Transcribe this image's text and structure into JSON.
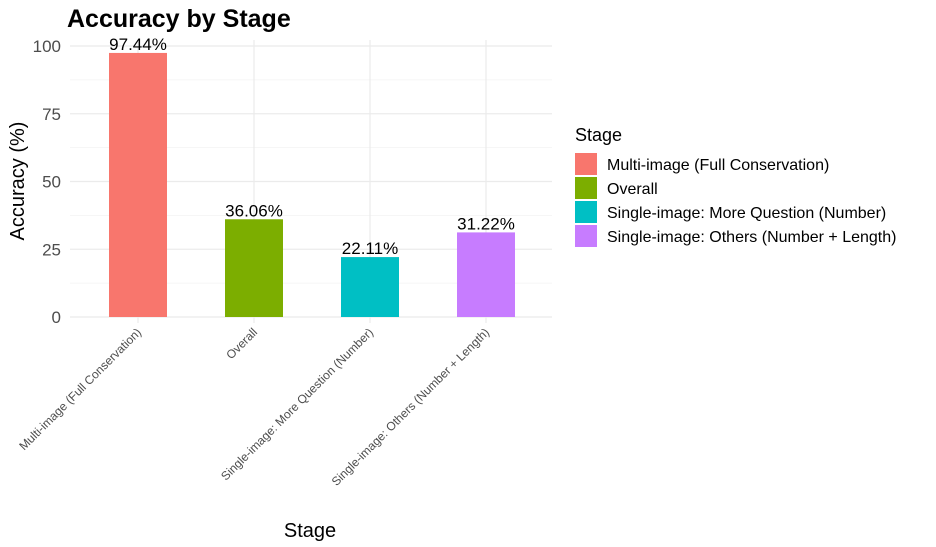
{
  "chart_data": {
    "type": "bar",
    "title": "Accuracy by Stage",
    "xlabel": "Stage",
    "ylabel": "Accuracy (%)",
    "ylim": [
      0,
      100
    ],
    "yticks": [
      0,
      25,
      50,
      75,
      100
    ],
    "categories": [
      "Multi-image (Full Conservation)",
      "Overall",
      "Single-image: More Question (Number)",
      "Single-image: Others (Number + Length)"
    ],
    "values": [
      97.44,
      36.06,
      22.11,
      31.22
    ],
    "data_labels": [
      "97.44%",
      "36.06%",
      "22.11%",
      "31.22%"
    ],
    "colors": [
      "#F8766D",
      "#7CAE00",
      "#00BFC4",
      "#C77CFF"
    ],
    "grid": true,
    "legend": {
      "title": "Stage",
      "placement": "right",
      "entries": [
        "Multi-image (Full Conservation)",
        "Overall",
        "Single-image: More Question (Number)",
        "Single-image: Others (Number + Length)"
      ]
    }
  }
}
